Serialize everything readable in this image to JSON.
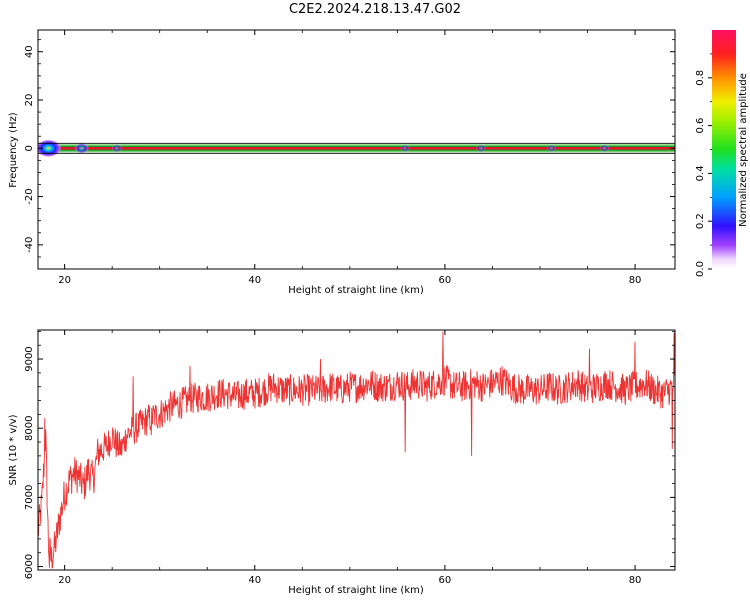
{
  "figure": {
    "title": "C2E2.2024.218.13.47.G02"
  },
  "chart_data": [
    {
      "type": "heatmap",
      "xlabel": "Height of straight line (km)",
      "ylabel": "Frequency (Hz)",
      "xlim": [
        17.2,
        84.2
      ],
      "ylim": [
        -50,
        49
      ],
      "xticks": [
        20,
        40,
        60,
        80
      ],
      "yticks": [
        -40,
        -20,
        0,
        20,
        40
      ],
      "band_center_hz": 0,
      "colorbar": {
        "label": "Normalized spectral amplitude",
        "range": [
          0,
          1
        ],
        "ticks": [
          "0.0",
          "0.2",
          "0.4",
          "0.6",
          "0.8"
        ]
      },
      "colors": {
        "band_core": "#e0142c",
        "band_edge": "#1e9c1e",
        "halo": "#7b22ff"
      },
      "blobs": [
        {
          "x": 18.3,
          "amplitude": 1.0
        },
        {
          "x": 21.8,
          "amplitude": 0.35
        },
        {
          "x": 25.5,
          "amplitude": 0.15
        },
        {
          "x": 55.8,
          "amplitude": 0.1
        },
        {
          "x": 63.8,
          "amplitude": 0.12
        },
        {
          "x": 71.2,
          "amplitude": 0.1
        },
        {
          "x": 76.8,
          "amplitude": 0.12
        }
      ]
    },
    {
      "type": "line",
      "xlabel": "Height of straight line (km)",
      "ylabel": "SNR (10 * v/v)",
      "xlim": [
        17.2,
        84.2
      ],
      "ylim": [
        5950,
        9420
      ],
      "xticks": [
        20,
        40,
        60,
        80
      ],
      "yticks": [
        6000,
        7000,
        8000,
        9000
      ],
      "series": [
        {
          "color": "#ee3333",
          "x": [
            17.2,
            17.6,
            18.0,
            18.3,
            18.6,
            19.0,
            19.5,
            20.0,
            20.5,
            21.0,
            21.5,
            22.0,
            22.5,
            23.0,
            23.5,
            24.0,
            24.5,
            25.0,
            25.5,
            26.0,
            26.5,
            27.0,
            28.0,
            29.0,
            30.0,
            31.0,
            32.0,
            33.0,
            34.0,
            35.0,
            36.0,
            37.0,
            38.0,
            39.0,
            40.0,
            41.0,
            42.0,
            43.0,
            44.0,
            45.0,
            46.0,
            47.0,
            48.0,
            49.0,
            50.0,
            51.0,
            52.0,
            53.0,
            54.0,
            55.0,
            56.0,
            57.0,
            58.0,
            59.0,
            60.0,
            61.0,
            62.0,
            63.0,
            64.0,
            65.0,
            66.0,
            67.0,
            68.0,
            69.0,
            70.0,
            71.0,
            72.0,
            73.0,
            74.0,
            75.0,
            76.0,
            77.0,
            78.0,
            79.0,
            80.0,
            81.0,
            82.0,
            83.0,
            84.0,
            84.2
          ],
          "values": [
            6500,
            6900,
            7900,
            6300,
            6100,
            6300,
            6700,
            7050,
            7250,
            7350,
            7300,
            7150,
            7400,
            7250,
            7650,
            7700,
            7750,
            7900,
            7750,
            7700,
            7900,
            7950,
            8050,
            8150,
            8200,
            8300,
            8350,
            8400,
            8450,
            8450,
            8500,
            8500,
            8450,
            8500,
            8500,
            8550,
            8600,
            8550,
            8550,
            8550,
            8550,
            8550,
            8600,
            8550,
            8600,
            8600,
            8650,
            8600,
            8600,
            8650,
            8600,
            8650,
            8600,
            8650,
            8700,
            8600,
            8600,
            8650,
            8600,
            8650,
            8700,
            8600,
            8550,
            8550,
            8550,
            8600,
            8550,
            8600,
            8650,
            8550,
            8600,
            8650,
            8600,
            8550,
            8600,
            8650,
            8550,
            8500,
            8600,
            8650
          ],
          "spikes": [
            {
              "x": 17.9,
              "value": 8150
            },
            {
              "x": 18.4,
              "value": 5980
            },
            {
              "x": 27.2,
              "value": 8750
            },
            {
              "x": 29.1,
              "value": 7900
            },
            {
              "x": 33.2,
              "value": 8900
            },
            {
              "x": 46.9,
              "value": 9000
            },
            {
              "x": 55.8,
              "value": 7650
            },
            {
              "x": 59.8,
              "value": 9400
            },
            {
              "x": 62.8,
              "value": 7600
            },
            {
              "x": 75.2,
              "value": 9150
            },
            {
              "x": 80.0,
              "value": 9250
            },
            {
              "x": 83.9,
              "value": 7700
            },
            {
              "x": 84.1,
              "value": 9380
            }
          ]
        }
      ]
    }
  ]
}
